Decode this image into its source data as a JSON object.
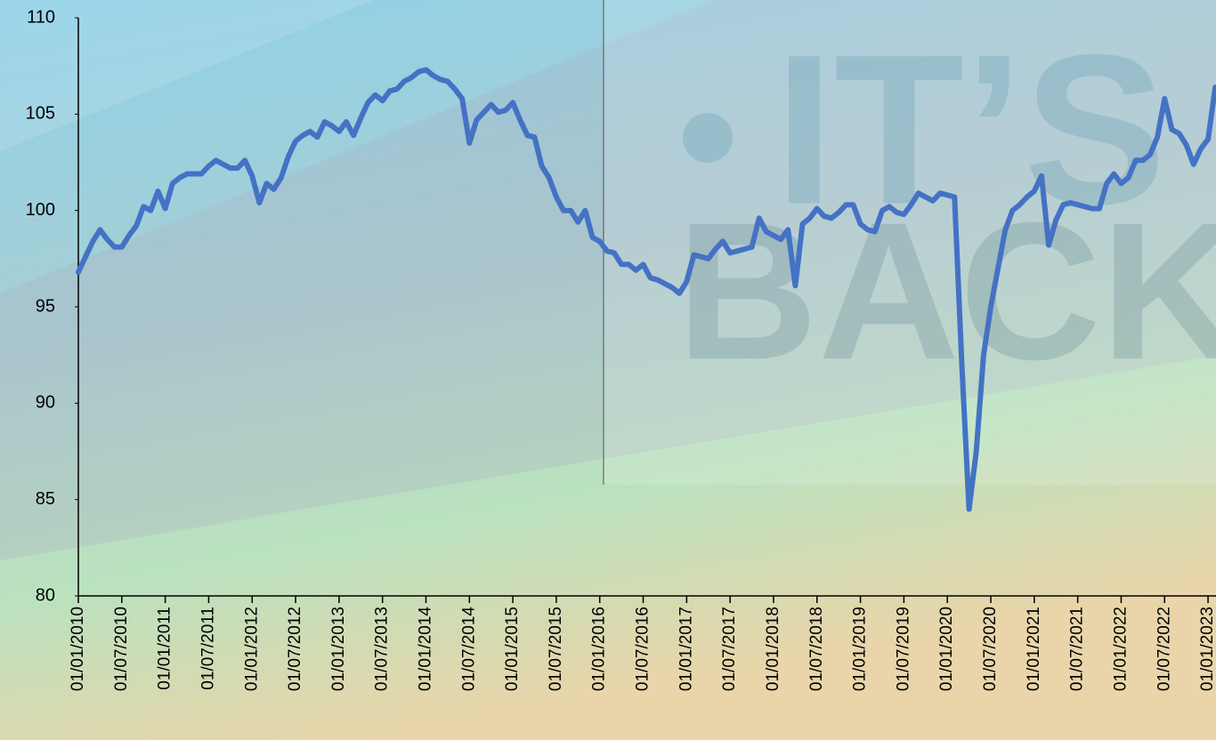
{
  "chart_data": {
    "type": "line",
    "watermark": [
      "IT’S",
      "BACK"
    ],
    "categories": [
      "01/01/2010",
      null,
      null,
      null,
      null,
      null,
      "01/07/2010",
      null,
      null,
      null,
      null,
      null,
      "01/01/2011",
      null,
      null,
      null,
      null,
      null,
      "01/07/2011",
      null,
      null,
      null,
      null,
      null,
      "01/01/2012",
      null,
      null,
      null,
      null,
      null,
      "01/07/2012",
      null,
      null,
      null,
      null,
      null,
      "01/01/2013",
      null,
      null,
      null,
      null,
      null,
      "01/07/2013",
      null,
      null,
      null,
      null,
      null,
      "01/01/2014",
      null,
      null,
      null,
      null,
      null,
      "01/07/2014",
      null,
      null,
      null,
      null,
      null,
      "01/01/2015",
      null,
      null,
      null,
      null,
      null,
      "01/07/2015",
      null,
      null,
      null,
      null,
      null,
      "01/01/2016",
      null,
      null,
      null,
      null,
      null,
      "01/07/2016",
      null,
      null,
      null,
      null,
      null,
      "01/01/2017",
      null,
      null,
      null,
      null,
      null,
      "01/07/2017",
      null,
      null,
      null,
      null,
      null,
      "01/01/2018",
      null,
      null,
      null,
      null,
      null,
      "01/07/2018",
      null,
      null,
      null,
      null,
      null,
      "01/01/2019",
      null,
      null,
      null,
      null,
      null,
      "01/07/2019",
      null,
      null,
      null,
      null,
      null,
      "01/01/2020",
      null,
      null,
      null,
      null,
      null,
      "01/07/2020",
      null,
      null,
      null,
      null,
      null,
      "01/01/2021",
      null,
      null,
      null,
      null,
      null,
      "01/07/2021",
      null,
      null,
      null,
      null,
      null,
      "01/01/2022",
      null,
      null,
      null,
      null,
      null,
      "01/07/2022",
      null,
      null,
      null,
      null,
      null,
      "01/01/2023",
      null
    ],
    "values": [
      96.8,
      97.6,
      98.4,
      99.0,
      98.5,
      98.1,
      98.1,
      98.7,
      99.2,
      100.2,
      100.0,
      101.0,
      100.1,
      101.4,
      101.7,
      101.9,
      101.9,
      101.9,
      102.3,
      102.6,
      102.4,
      102.2,
      102.2,
      102.6,
      101.8,
      100.4,
      101.4,
      101.1,
      101.7,
      102.8,
      103.6,
      103.9,
      104.1,
      103.8,
      104.6,
      104.4,
      104.1,
      104.6,
      103.9,
      104.8,
      105.6,
      106.0,
      105.7,
      106.2,
      106.3,
      106.7,
      106.9,
      107.2,
      107.3,
      107.0,
      106.8,
      106.7,
      106.3,
      105.8,
      103.5,
      104.7,
      105.1,
      105.5,
      105.1,
      105.2,
      105.6,
      104.7,
      103.9,
      103.8,
      102.3,
      101.7,
      100.7,
      100.0,
      100.0,
      99.4,
      100.0,
      98.6,
      98.4,
      97.9,
      97.8,
      97.2,
      97.2,
      96.9,
      97.2,
      96.5,
      96.4,
      96.2,
      96.0,
      95.7,
      96.3,
      97.7,
      97.6,
      97.5,
      98.0,
      98.4,
      97.8,
      97.9,
      98.0,
      98.1,
      99.6,
      98.9,
      98.7,
      98.5,
      99.0,
      96.1,
      99.3,
      99.6,
      100.1,
      99.7,
      99.6,
      99.9,
      100.3,
      100.3,
      99.3,
      99.0,
      98.9,
      100.0,
      100.2,
      99.9,
      99.8,
      100.3,
      100.9,
      100.7,
      100.5,
      100.9,
      100.8,
      100.7,
      92.0,
      84.5,
      87.5,
      92.5,
      95.0,
      97.0,
      99.0,
      100.0,
      100.3,
      100.7,
      101.0,
      101.8,
      98.2,
      99.5,
      100.3,
      100.4,
      100.3,
      100.2,
      100.1,
      100.1,
      101.4,
      101.9,
      101.4,
      101.7,
      102.6,
      102.6,
      102.9,
      103.8,
      105.8,
      104.2,
      104.0,
      103.4,
      102.4,
      103.2,
      103.7,
      106.4
    ],
    "color": "#4472c4",
    "ylim": [
      80,
      110
    ],
    "yticks": [
      80,
      85,
      90,
      95,
      100,
      105,
      110
    ]
  }
}
